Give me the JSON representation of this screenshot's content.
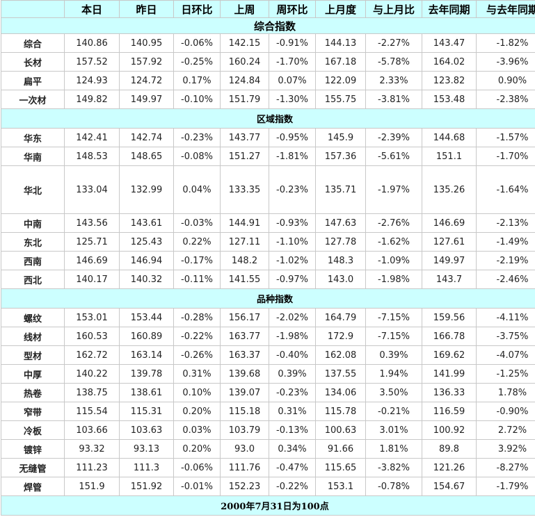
{
  "header": [
    "",
    "本日",
    "昨日",
    "日环比",
    "上周",
    "周环比",
    "上月度",
    "与上月比",
    "去年同期",
    "与去年同期"
  ],
  "sections": [
    {
      "title": "综合指数",
      "rows": [
        {
          "name": "综合",
          "values": [
            "140.86",
            "140.95",
            "-0.06%",
            "142.15",
            "-0.91%",
            "144.13",
            "-2.27%",
            "143.47",
            "-1.82%"
          ]
        },
        {
          "name": "长材",
          "values": [
            "157.52",
            "157.92",
            "-0.25%",
            "160.24",
            "-1.70%",
            "167.18",
            "-5.78%",
            "164.02",
            "-3.96%"
          ]
        },
        {
          "name": "扁平",
          "values": [
            "124.93",
            "124.72",
            "0.17%",
            "124.84",
            "0.07%",
            "122.09",
            "2.33%",
            "123.82",
            "0.90%"
          ]
        },
        {
          "name": "一次材",
          "values": [
            "149.82",
            "149.97",
            "-0.10%",
            "151.79",
            "-1.30%",
            "155.75",
            "-3.81%",
            "153.48",
            "-2.38%"
          ]
        }
      ]
    },
    {
      "title": "区域指数",
      "rows": [
        {
          "name": "华东",
          "values": [
            "142.41",
            "142.74",
            "-0.23%",
            "143.77",
            "-0.95%",
            "145.9",
            "-2.39%",
            "144.68",
            "-1.57%"
          ]
        },
        {
          "name": "华南",
          "values": [
            "148.53",
            "148.65",
            "-0.08%",
            "151.27",
            "-1.81%",
            "157.36",
            "-5.61%",
            "151.1",
            "-1.70%"
          ]
        },
        {
          "name": "华北",
          "values": [
            "133.04",
            "132.99",
            "0.04%",
            "133.35",
            "-0.23%",
            "135.71",
            "-1.97%",
            "135.26",
            "-1.64%"
          ]
        },
        {
          "name": "中南",
          "values": [
            "143.56",
            "143.61",
            "-0.03%",
            "144.91",
            "-0.93%",
            "147.63",
            "-2.76%",
            "146.69",
            "-2.13%"
          ]
        },
        {
          "name": "东北",
          "values": [
            "125.71",
            "125.43",
            "0.22%",
            "127.11",
            "-1.10%",
            "127.78",
            "-1.62%",
            "127.61",
            "-1.49%"
          ]
        },
        {
          "name": "西南",
          "values": [
            "146.69",
            "146.94",
            "-0.17%",
            "148.2",
            "-1.02%",
            "148.3",
            "-1.09%",
            "149.97",
            "-2.19%"
          ]
        },
        {
          "name": "西北",
          "values": [
            "140.17",
            "140.32",
            "-0.11%",
            "141.55",
            "-0.97%",
            "143.0",
            "-1.98%",
            "143.7",
            "-2.46%"
          ]
        }
      ]
    },
    {
      "title": "品种指数",
      "rows": [
        {
          "name": "螺纹",
          "values": [
            "153.01",
            "153.44",
            "-0.28%",
            "156.17",
            "-2.02%",
            "164.79",
            "-7.15%",
            "159.56",
            "-4.11%"
          ]
        },
        {
          "name": "线材",
          "values": [
            "160.53",
            "160.89",
            "-0.22%",
            "163.77",
            "-1.98%",
            "172.9",
            "-7.15%",
            "166.78",
            "-3.75%"
          ]
        },
        {
          "name": "型材",
          "values": [
            "162.72",
            "163.14",
            "-0.26%",
            "163.37",
            "-0.40%",
            "162.08",
            "0.39%",
            "169.62",
            "-4.07%"
          ]
        },
        {
          "name": "中厚",
          "values": [
            "140.22",
            "139.78",
            "0.31%",
            "139.68",
            "0.39%",
            "137.55",
            "1.94%",
            "141.99",
            "-1.25%"
          ]
        },
        {
          "name": "热卷",
          "values": [
            "138.75",
            "138.61",
            "0.10%",
            "139.07",
            "-0.23%",
            "134.06",
            "3.50%",
            "136.33",
            "1.78%"
          ]
        },
        {
          "name": "窄带",
          "values": [
            "115.54",
            "115.31",
            "0.20%",
            "115.18",
            "0.31%",
            "115.78",
            "-0.21%",
            "116.59",
            "-0.90%"
          ]
        },
        {
          "name": "冷板",
          "values": [
            "103.66",
            "103.63",
            "0.03%",
            "103.79",
            "-0.13%",
            "100.63",
            "3.01%",
            "100.92",
            "2.72%"
          ]
        },
        {
          "name": "镀锌",
          "values": [
            "93.32",
            "93.13",
            "0.20%",
            "93.0",
            "0.34%",
            "91.66",
            "1.81%",
            "89.8",
            "3.92%"
          ]
        },
        {
          "name": "无缝管",
          "values": [
            "111.23",
            "111.3",
            "-0.06%",
            "111.76",
            "-0.47%",
            "115.65",
            "-3.82%",
            "121.26",
            "-8.27%"
          ]
        },
        {
          "name": "焊管",
          "values": [
            "151.9",
            "151.92",
            "-0.01%",
            "152.23",
            "-0.22%",
            "153.1",
            "-0.78%",
            "154.67",
            "-1.79%"
          ]
        }
      ]
    }
  ],
  "footer": "2000年7月31日为100点",
  "colors": {
    "band": "#ccffff",
    "negative": "#008000",
    "positive": "#e60000",
    "border": "#c8c8c8"
  }
}
